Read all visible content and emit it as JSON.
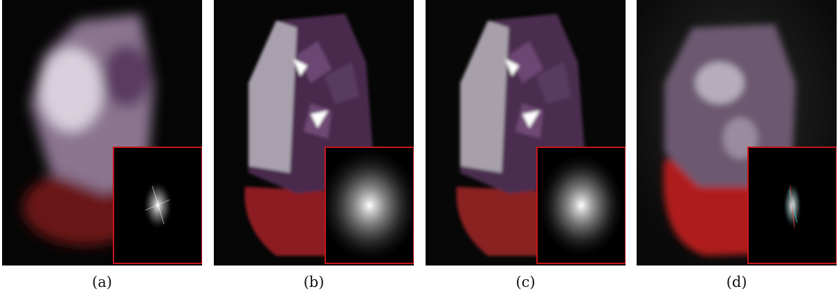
{
  "panels": [
    {
      "id": "a",
      "caption": "(a)"
    },
    {
      "id": "b",
      "caption": "(b)"
    },
    {
      "id": "c",
      "caption": "(c)"
    },
    {
      "id": "d",
      "caption": "(d)"
    }
  ],
  "colors": {
    "inset_border": "#c8161b",
    "crystal": "#8a6b8c",
    "stand": "#8e1f22",
    "background": "#050505"
  }
}
